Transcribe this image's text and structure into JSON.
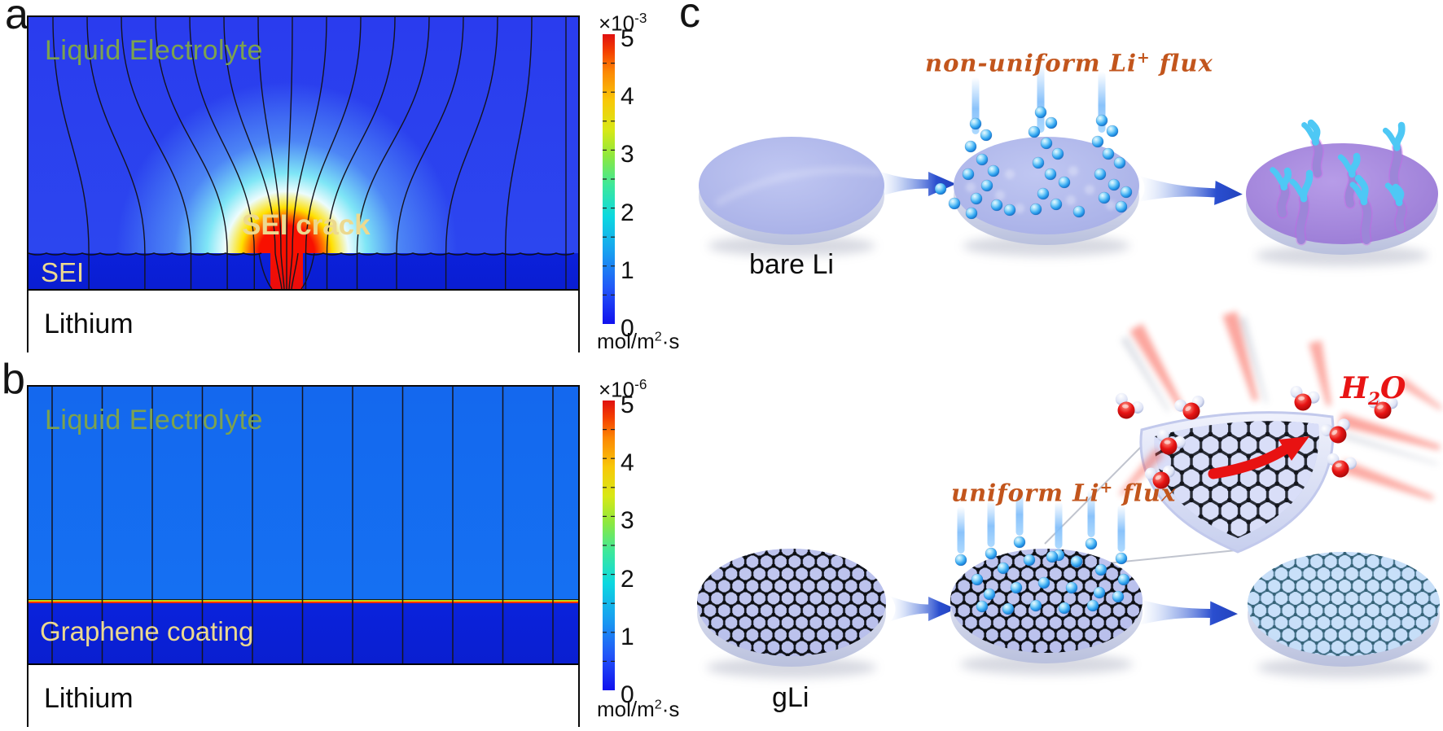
{
  "panels": {
    "a": {
      "label": "a",
      "electrolyte_label": "Liquid Electrolyte",
      "crack_label": "SEI crack",
      "sei_label": "SEI",
      "lithium_label": "Lithium",
      "colorbar": {
        "exponent_base": "×10",
        "exponent_power": "-3",
        "ticks": [
          "5",
          "4",
          "3",
          "2",
          "1",
          "0"
        ],
        "unit_pre": "mol/m",
        "unit_sup": "2",
        "unit_post": "·s"
      }
    },
    "b": {
      "label": "b",
      "electrolyte_label": "Liquid Electrolyte",
      "coating_label": "Graphene coating",
      "lithium_label": "Lithium",
      "colorbar": {
        "exponent_base": "×10",
        "exponent_power": "-6",
        "ticks": [
          "5",
          "4",
          "3",
          "2",
          "1",
          "0"
        ],
        "unit_pre": "mol/m",
        "unit_sup": "2",
        "unit_post": "·s"
      }
    },
    "c": {
      "label": "c",
      "bare_li_caption": "bare Li",
      "gli_caption": "gLi",
      "nonuniform_flux": {
        "pre": "non-uniform Li",
        "sup": "+",
        "post": " flux"
      },
      "uniform_flux": {
        "pre": "uniform Li",
        "sup": "+",
        "post": " flux"
      },
      "h2o": {
        "pre": "H",
        "sub": "2",
        "post": "O"
      }
    }
  },
  "colors": {
    "flux_text": "#c2551c",
    "h2o_text": "#e81414",
    "electrolyte_label": "#7ca24f",
    "sei_label": "#ecd98f",
    "jet_top": "#e01010",
    "jet_bottom": "#1111ee",
    "sim_blue_a": "#2a3cee",
    "sim_blue_b": "#146aef",
    "sei_blue": "#0b20da",
    "crack_red": "#f81000",
    "arrow_blue": "#2a4ecf"
  }
}
